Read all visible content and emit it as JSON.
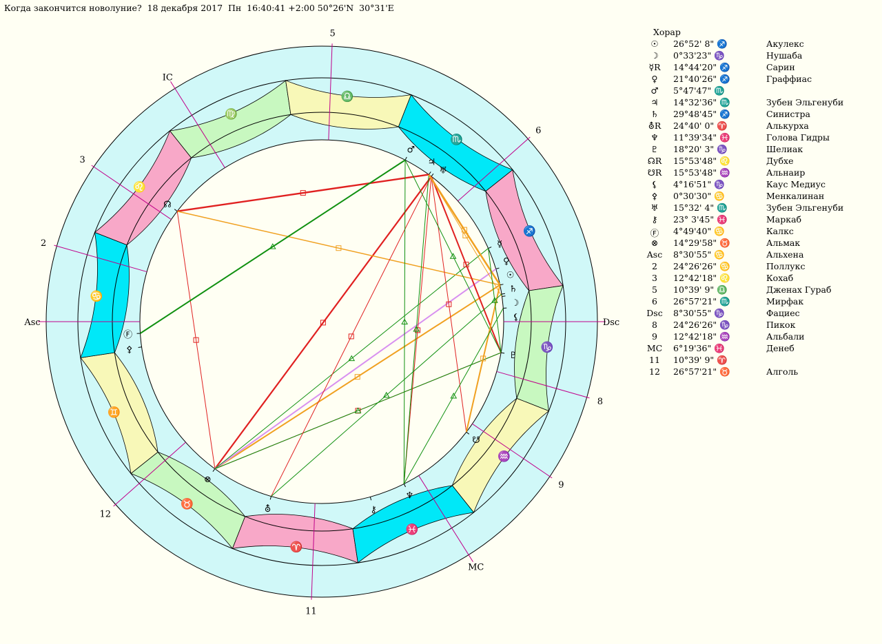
{
  "title": "Когда закончится новолуние?  18 декабря 2017  Пн  16:40:41 +2:00 50°26'N  30°31'E",
  "table_header": "Хорар",
  "table": [
    {
      "label": "☉",
      "pos": "26°52' 8\" ♐",
      "star": "Акулекс"
    },
    {
      "label": "☽",
      "pos": "0°33'23\" ♑",
      "star": "Нушаба"
    },
    {
      "label": "☿R",
      "pos": "14°44'20\" ♐",
      "star": "Сарин"
    },
    {
      "label": "♀",
      "pos": "21°40'26\" ♐",
      "star": "Граффиас"
    },
    {
      "label": "♂",
      "pos": "5°47'47\" ♏",
      "star": ""
    },
    {
      "label": "♃",
      "pos": "14°32'36\" ♏",
      "star": "Зубен Эльгенуби"
    },
    {
      "label": "♄",
      "pos": "29°48'45\" ♐",
      "star": "Синистра"
    },
    {
      "label": "⛢R",
      "pos": "24°40' 0\" ♈",
      "star": "Алькурха"
    },
    {
      "label": "♆",
      "pos": "11°39'34\" ♓",
      "star": "Голова Гидры"
    },
    {
      "label": "♇",
      "pos": "18°20' 3\" ♑",
      "star": "Шелиак"
    },
    {
      "label": "☊R",
      "pos": "15°53'48\" ♌",
      "star": "Дубхе"
    },
    {
      "label": "☋R",
      "pos": "15°53'48\" ♒",
      "star": "Альнаир"
    },
    {
      "label": "⚸",
      "pos": "4°16'51\" ♑",
      "star": "Каус Медиус"
    },
    {
      "label": "⚴",
      "pos": "0°30'30\" ♋",
      "star": "Менкалинан"
    },
    {
      "label": "♅",
      "pos": "15°32' 4\" ♏",
      "star": "Зубен Эльгенуби"
    },
    {
      "label": "⚷",
      "pos": "23° 3'45\" ♓",
      "star": "Маркаб"
    },
    {
      "label": "Ⓕ",
      "pos": "4°49'40\" ♋",
      "star": "Калкс"
    },
    {
      "label": "⊗",
      "pos": "14°29'58\" ♉",
      "star": "Альмак"
    },
    {
      "label": "Asc",
      "pos": "8°30'55\" ♋",
      "star": "Альхена"
    },
    {
      "label": "2",
      "pos": "24°26'26\" ♋",
      "star": "Поллукс"
    },
    {
      "label": "3",
      "pos": "12°42'18\" ♌",
      "star": "Кохаб"
    },
    {
      "label": "5",
      "pos": "10°39' 9\" ♎",
      "star": "Дженах Гураб"
    },
    {
      "label": "6",
      "pos": "26°57'21\" ♏",
      "star": "Мирфак"
    },
    {
      "label": "Dsc",
      "pos": "8°30'55\" ♑",
      "star": "Фациес"
    },
    {
      "label": "8",
      "pos": "24°26'26\" ♑",
      "star": "Пикок"
    },
    {
      "label": "9",
      "pos": "12°42'18\" ♒",
      "star": "Альбали"
    },
    {
      "label": "MC",
      "pos": "6°19'36\" ♓",
      "star": "Денеб"
    },
    {
      "label": "11",
      "pos": "10°39' 9\" ♈",
      "star": ""
    },
    {
      "label": "12",
      "pos": "26°57'21\" ♉",
      "star": "Алголь"
    }
  ],
  "axes": {
    "asc": "Asc",
    "dsc": "Dsc",
    "mc": "MC",
    "ic": "IC"
  },
  "cusp_numbers": [
    "2",
    "3",
    "5",
    "6",
    "8",
    "9",
    "11",
    "12"
  ],
  "signs": [
    {
      "glyph": "♈",
      "name": "aries",
      "color": "#f8a8c8"
    },
    {
      "glyph": "♉",
      "name": "taurus",
      "color": "#c8f8c0"
    },
    {
      "glyph": "♊",
      "name": "gemini",
      "color": "#f8f8b8"
    },
    {
      "glyph": "♋",
      "name": "cancer",
      "color": "#00e8f8"
    },
    {
      "glyph": "♌",
      "name": "leo",
      "color": "#f8a8c8"
    },
    {
      "glyph": "♍",
      "name": "virgo",
      "color": "#c8f8c0"
    },
    {
      "glyph": "♎",
      "name": "libra",
      "color": "#f8f8b8"
    },
    {
      "glyph": "♏",
      "name": "scorpio",
      "color": "#00e8f8"
    },
    {
      "glyph": "♐",
      "name": "sagittarius",
      "color": "#f8a8c8"
    },
    {
      "glyph": "♑",
      "name": "capricorn",
      "color": "#c8f8c0"
    },
    {
      "glyph": "♒",
      "name": "aquarius",
      "color": "#f8f8b8"
    },
    {
      "glyph": "♓",
      "name": "pisces",
      "color": "#00e8f8"
    }
  ],
  "colors": {
    "ring": "#d0f8f8",
    "inner_bg": "#fffff3",
    "axis": "#c0008a",
    "red": "#e02020",
    "green": "#109010",
    "orange": "#f0a020",
    "violet": "#d890f0"
  },
  "planets": [
    {
      "name": "sun",
      "glyph": "☉",
      "pos": "26°52' 8\" ♐"
    },
    {
      "name": "moon",
      "glyph": "☽",
      "pos": "0°33'23\" ♑"
    },
    {
      "name": "mercury",
      "glyph": "☿",
      "pos": "14°44'20\" ♐"
    },
    {
      "name": "venus",
      "glyph": "♀",
      "pos": "21°40'26\" ♐"
    },
    {
      "name": "mars",
      "glyph": "♂",
      "pos": "5°47'47\" ♏"
    },
    {
      "name": "jupiter",
      "glyph": "♃",
      "pos": "14°32'36\" ♏"
    },
    {
      "name": "saturn",
      "glyph": "♄",
      "pos": "29°48'45\" ♐"
    },
    {
      "name": "uranus",
      "glyph": "⛢",
      "pos": "24°40' 0\" ♈"
    },
    {
      "name": "neptune",
      "glyph": "♆",
      "pos": "11°39'34\" ♓"
    },
    {
      "name": "pluto",
      "glyph": "♇",
      "pos": "18°20' 3\" ♑"
    },
    {
      "name": "north-node",
      "glyph": "☊",
      "pos": "15°53'48\" ♌"
    },
    {
      "name": "south-node",
      "glyph": "☋",
      "pos": "15°53'48\" ♒"
    },
    {
      "name": "lilith",
      "glyph": "⚸",
      "pos": "4°16'51\" ♑"
    },
    {
      "name": "selena",
      "glyph": "⚴",
      "pos": "0°30'30\" ♋"
    },
    {
      "name": "herschel",
      "glyph": "♅",
      "pos": "15°32' 4\" ♏"
    },
    {
      "name": "chiron",
      "glyph": "⚷",
      "pos": "23° 3'45\" ♓"
    },
    {
      "name": "fortune",
      "glyph": "Ⓕ",
      "pos": "4°49'40\" ♋"
    },
    {
      "name": "part-of-spirit",
      "glyph": "⊗",
      "pos": "14°29'58\" ♉"
    }
  ]
}
